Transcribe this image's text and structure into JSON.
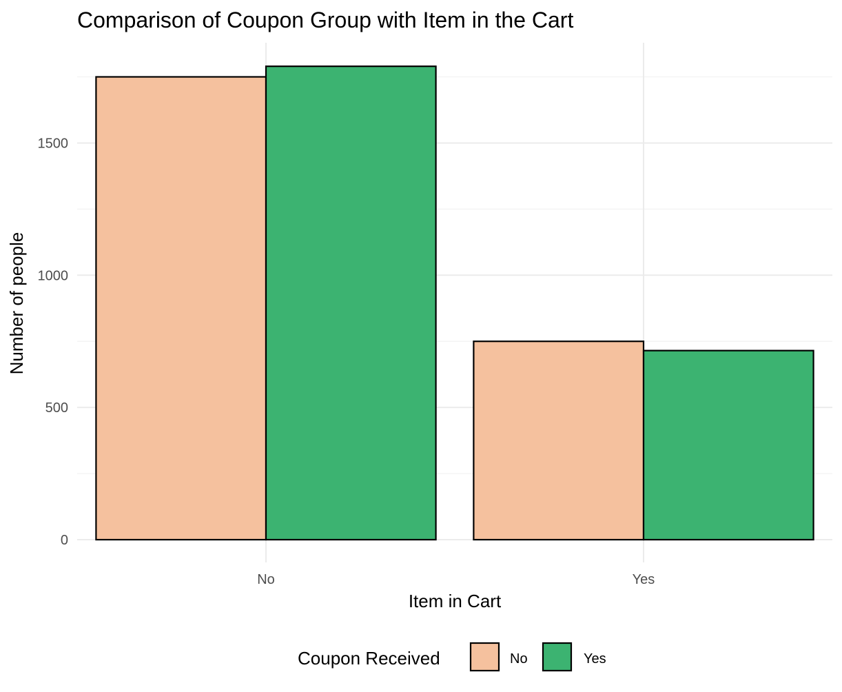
{
  "colors": {
    "coupon_no": "#f5c19e",
    "coupon_yes": "#3cb371",
    "bar_outline": "#000000",
    "background": "#ffffff",
    "grid": "#ebebeb"
  },
  "chart_data": {
    "type": "bar",
    "title": "Comparison of Coupon Group with Item in the Cart",
    "xlabel": "Item in Cart",
    "ylabel": "Number of people",
    "categories": [
      "No",
      "Yes"
    ],
    "series": [
      {
        "name": "No",
        "values": [
          1750,
          750
        ]
      },
      {
        "name": "Yes",
        "values": [
          1790,
          715
        ]
      }
    ],
    "ylim": [
      0,
      1860
    ],
    "yticks": [
      0,
      500,
      1000,
      1500
    ],
    "ytick_labels": [
      "0",
      "500",
      "1000",
      "1500"
    ],
    "grid": true,
    "legend": {
      "title": "Coupon Received",
      "position": "bottom",
      "entries": [
        "No",
        "Yes"
      ]
    }
  }
}
